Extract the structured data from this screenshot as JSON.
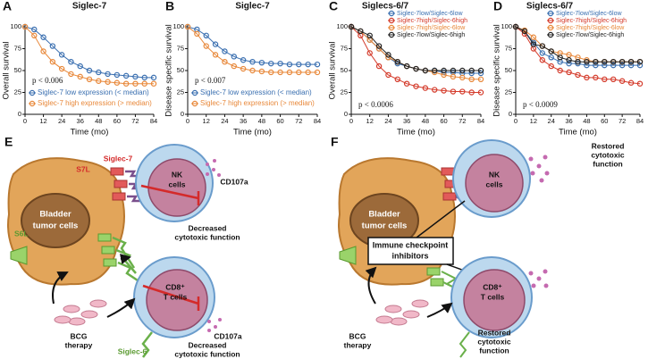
{
  "chart_data": [
    {
      "type": "line",
      "panel": "A",
      "title": "Siglec-7",
      "xlabel": "Time (mo)",
      "ylabel": "Overall survival",
      "annotation": "p < 0.006",
      "x": [
        0,
        6,
        12,
        18,
        24,
        30,
        36,
        42,
        48,
        54,
        60,
        66,
        72,
        78,
        84
      ],
      "xlim": [
        0,
        84
      ],
      "ylim": [
        0,
        100
      ],
      "xticks": [
        0,
        12,
        24,
        36,
        48,
        60,
        72,
        84
      ],
      "yticks": [
        0,
        25,
        50,
        75,
        100
      ],
      "legend": "lower left",
      "series": [
        {
          "name": "Siglec-7 low expression (< median)",
          "color": "#3a6fb0",
          "values": [
            100,
            97,
            88,
            78,
            68,
            60,
            55,
            50,
            48,
            46,
            45,
            44,
            43,
            42,
            42
          ]
        },
        {
          "name": "Siglec-7 high expression (> median)",
          "color": "#e8883a",
          "values": [
            100,
            90,
            72,
            60,
            52,
            46,
            43,
            40,
            38,
            37,
            36,
            35,
            35,
            35,
            35
          ]
        }
      ]
    },
    {
      "type": "line",
      "panel": "B",
      "title": "Siglec-7",
      "xlabel": "Time (mo)",
      "ylabel": "Disease specific survival",
      "annotation": "p < 0.007",
      "x": [
        0,
        6,
        12,
        18,
        24,
        30,
        36,
        42,
        48,
        54,
        60,
        66,
        72,
        78,
        84
      ],
      "xlim": [
        0,
        84
      ],
      "ylim": [
        0,
        100
      ],
      "xticks": [
        0,
        12,
        24,
        36,
        48,
        60,
        72,
        84
      ],
      "yticks": [
        0,
        25,
        50,
        75,
        100
      ],
      "legend": "lower left",
      "series": [
        {
          "name": "Siglec-7 low expression (< median)",
          "color": "#3a6fb0",
          "values": [
            100,
            97,
            90,
            80,
            72,
            66,
            62,
            60,
            59,
            58,
            58,
            57,
            57,
            57,
            57
          ]
        },
        {
          "name": "Siglec-7 high expression (> median)",
          "color": "#e8883a",
          "values": [
            100,
            92,
            78,
            68,
            60,
            55,
            52,
            50,
            49,
            48,
            48,
            48,
            48,
            48,
            48
          ]
        }
      ]
    },
    {
      "type": "line",
      "panel": "C",
      "title": "Siglecs-6/7",
      "xlabel": "Time (mo)",
      "ylabel": "Overall survival",
      "annotation": "p < 0.0006",
      "x": [
        0,
        6,
        12,
        18,
        24,
        30,
        36,
        42,
        48,
        54,
        60,
        66,
        72,
        78,
        84
      ],
      "xlim": [
        0,
        84
      ],
      "ylim": [
        0,
        100
      ],
      "xticks": [
        0,
        12,
        24,
        36,
        48,
        60,
        72,
        84
      ],
      "yticks": [
        0,
        25,
        50,
        75,
        100
      ],
      "legend": "upper right",
      "series": [
        {
          "name": "Siglec-7low/Siglec-6low",
          "color": "#3a6fb0",
          "values": [
            100,
            95,
            85,
            75,
            65,
            58,
            55,
            52,
            50,
            50,
            48,
            48,
            47,
            47,
            47
          ]
        },
        {
          "name": "Siglec-7high/Siglec-6high",
          "color": "#d43a2a",
          "values": [
            100,
            90,
            70,
            55,
            45,
            40,
            35,
            32,
            30,
            28,
            27,
            26,
            26,
            25,
            25
          ]
        },
        {
          "name": "Siglec-7high/Siglec-6low",
          "color": "#e8883a",
          "values": [
            100,
            95,
            85,
            75,
            65,
            60,
            55,
            52,
            50,
            48,
            45,
            43,
            42,
            40,
            40
          ]
        },
        {
          "name": "Siglec-7low/Siglec-6high",
          "color": "#222222",
          "values": [
            100,
            95,
            90,
            78,
            68,
            60,
            55,
            52,
            50,
            50,
            50,
            50,
            50,
            50,
            50
          ]
        }
      ]
    },
    {
      "type": "line",
      "panel": "D",
      "title": "Siglecs-6/7",
      "xlabel": "Time (mo)",
      "ylabel": "Disease specific survival",
      "annotation": "p < 0.0009",
      "x": [
        0,
        6,
        12,
        18,
        24,
        30,
        36,
        42,
        48,
        54,
        60,
        66,
        72,
        78,
        84
      ],
      "xlim": [
        0,
        84
      ],
      "ylim": [
        0,
        100
      ],
      "xticks": [
        0,
        12,
        24,
        36,
        48,
        60,
        72,
        84
      ],
      "yticks": [
        0,
        25,
        50,
        75,
        100
      ],
      "legend": "upper right",
      "series": [
        {
          "name": "Siglec-7low/Siglec-6low",
          "color": "#3a6fb0",
          "values": [
            100,
            95,
            82,
            70,
            65,
            60,
            58,
            58,
            56,
            56,
            56,
            56,
            56,
            56,
            56
          ]
        },
        {
          "name": "Siglec-7high/Siglec-6high",
          "color": "#d43a2a",
          "values": [
            100,
            92,
            75,
            62,
            55,
            50,
            48,
            45,
            42,
            42,
            40,
            40,
            38,
            36,
            35
          ]
        },
        {
          "name": "Siglec-7high/Siglec-6low",
          "color": "#e8883a",
          "values": [
            100,
            96,
            88,
            78,
            72,
            70,
            68,
            65,
            62,
            60,
            60,
            60,
            60,
            60,
            60
          ]
        },
        {
          "name": "Siglec-7low/Siglec-6high",
          "color": "#222222",
          "values": [
            100,
            95,
            80,
            78,
            72,
            65,
            62,
            60,
            60,
            60,
            60,
            60,
            60,
            60,
            60
          ]
        }
      ]
    }
  ],
  "diagram_e": {
    "label": "E",
    "s7l": "S7L",
    "siglec7": "Siglec-7",
    "nk_cells": [
      "NK",
      "cells"
    ],
    "cd107a_nk": "CD107a",
    "tumor": [
      "Bladder",
      "tumor cells"
    ],
    "nk_effect": [
      "Decreased",
      "cytotoxic function"
    ],
    "s6l": "S6L",
    "t_cells": [
      "CD8⁺",
      "T cells"
    ],
    "cd107a_t": "CD107a",
    "bcg": [
      "BCG",
      "therapy"
    ],
    "t_effect": [
      "Decreased",
      "cytotoxic function"
    ],
    "siglec6": "Siglec-6"
  },
  "diagram_f": {
    "label": "F",
    "nk_effect": [
      "Restored",
      "cytotoxic",
      "function"
    ],
    "nk_cells": [
      "NK",
      "cells"
    ],
    "tumor": [
      "Bladder",
      "tumor cells"
    ],
    "inhibitors": [
      "Immune checkpoint",
      "inhibitors"
    ],
    "t_cells": [
      "CD8⁺",
      "T cells"
    ],
    "bcg": [
      "BCG",
      "therapy"
    ],
    "t_effect": [
      "Restored",
      "cytotoxic",
      "function"
    ]
  }
}
